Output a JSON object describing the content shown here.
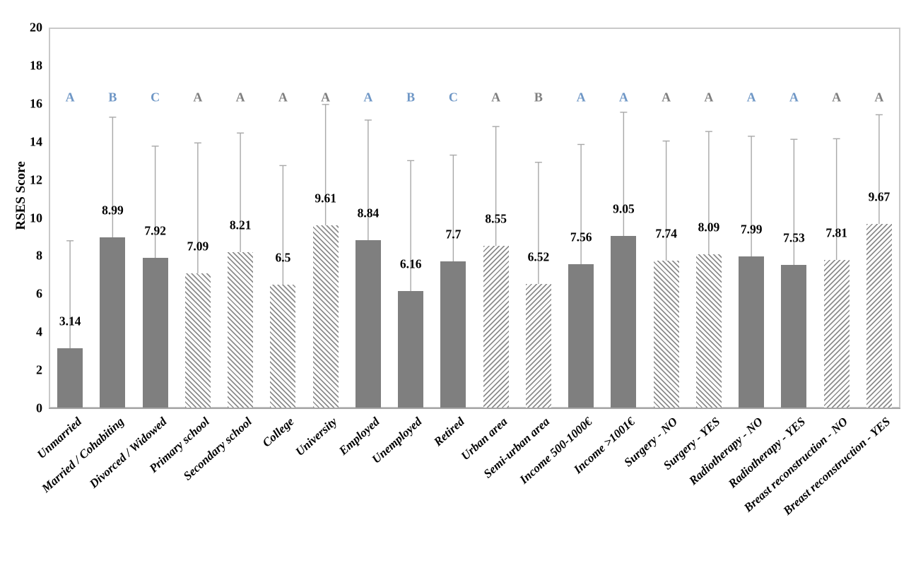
{
  "colors": {
    "bar_solid": "#7f7f7f",
    "hatch_stripe": "#8c8c8c",
    "error_bar": "#a8a8a8",
    "letter_blue": "#6f97c6",
    "letter_gray": "#7f7f7f",
    "plot_border": "#c9c9c9",
    "axis_line": "#a6a6a6",
    "text": "#000000"
  },
  "y_axis": {
    "title": "RSES Score",
    "min": 0,
    "max": 20,
    "step": 2,
    "ticks": [
      "0",
      "2",
      "4",
      "6",
      "8",
      "10",
      "12",
      "14",
      "16",
      "18",
      "20"
    ]
  },
  "chart_data": {
    "type": "bar",
    "title": "",
    "xlabel": "",
    "ylabel": "RSES Score",
    "ylim": [
      0,
      20
    ],
    "grid": false,
    "legend": "none",
    "categories": [
      "Unmarried",
      "Married / Cohabiting",
      "Divorced / Widowed",
      "Primary school",
      "Secondary school",
      "College",
      "University",
      "Employed",
      "Unemployed",
      "Retired",
      "Urban area",
      "Semi-urban area",
      "Income 500-1000€",
      "Income >1001€",
      "Surgery - NO",
      "Surgery - YES",
      "Radiotherapy - NO",
      "Radiotherapy - YES",
      "Breast reconstruction - NO",
      "Breast reconstruction - YES"
    ],
    "values": [
      3.14,
      8.99,
      7.92,
      7.09,
      8.21,
      6.5,
      9.61,
      8.84,
      6.16,
      7.7,
      8.55,
      6.52,
      7.56,
      9.05,
      7.74,
      8.09,
      7.99,
      7.53,
      7.81,
      9.67
    ],
    "value_labels": [
      "3.14",
      "8.99",
      "7.92",
      "7.09",
      "8.21",
      "6.5",
      "9.61",
      "8.84",
      "6.16",
      "7.7",
      "8.55",
      "6.52",
      "7.56",
      "9.05",
      "7.74",
      "8.09",
      "7.99",
      "7.53",
      "7.81",
      "9.67"
    ],
    "error_sd": [
      5.66,
      6.3,
      5.85,
      6.85,
      6.25,
      6.25,
      6.35,
      6.3,
      6.85,
      5.6,
      6.25,
      6.4,
      6.3,
      6.5,
      6.3,
      6.45,
      6.3,
      6.6,
      6.35,
      5.75
    ],
    "fill_styles": [
      "solid",
      "solid",
      "solid",
      "hatch-back",
      "hatch-back",
      "hatch-back",
      "hatch-back",
      "solid",
      "solid",
      "solid",
      "hatch-fwd",
      "hatch-fwd",
      "solid",
      "solid",
      "hatch-back",
      "hatch-back",
      "solid",
      "solid",
      "hatch-fwd",
      "hatch-fwd"
    ],
    "significance_letters": [
      {
        "text": "A",
        "color": "blue"
      },
      {
        "text": "B",
        "color": "blue"
      },
      {
        "text": "C",
        "color": "blue"
      },
      {
        "text": "A",
        "color": "gray"
      },
      {
        "text": "A",
        "color": "gray"
      },
      {
        "text": "A",
        "color": "gray"
      },
      {
        "text": "A",
        "color": "gray"
      },
      {
        "text": "A",
        "color": "blue"
      },
      {
        "text": "B",
        "color": "blue"
      },
      {
        "text": "C",
        "color": "blue"
      },
      {
        "text": "A",
        "color": "gray"
      },
      {
        "text": "B",
        "color": "gray"
      },
      {
        "text": "A",
        "color": "blue"
      },
      {
        "text": "A",
        "color": "blue"
      },
      {
        "text": "A",
        "color": "gray"
      },
      {
        "text": "A",
        "color": "gray"
      },
      {
        "text": "A",
        "color": "blue"
      },
      {
        "text": "A",
        "color": "blue"
      },
      {
        "text": "A",
        "color": "gray"
      },
      {
        "text": "A",
        "color": "gray"
      }
    ]
  }
}
